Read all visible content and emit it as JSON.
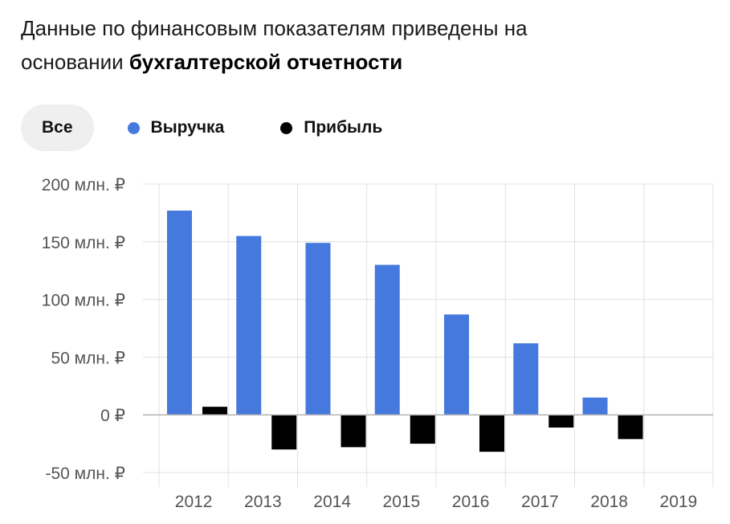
{
  "header": {
    "line1": "Данные по финансовым показателям приведены на",
    "line2_prefix": "основании ",
    "line2_bold": "бухгалтерской отчетности"
  },
  "filters": {
    "all_label": "Все"
  },
  "colors": {
    "revenue": "#4579de",
    "profit": "#000000",
    "grid": "#e0e0e0",
    "zero_line": "#b5b5b5"
  },
  "chart_data": {
    "type": "bar",
    "categories": [
      "2012",
      "2013",
      "2014",
      "2015",
      "2016",
      "2017",
      "2018",
      "2019"
    ],
    "series": [
      {
        "name": "Выручка",
        "values": [
          177,
          155,
          149,
          130,
          87,
          62,
          15,
          0
        ]
      },
      {
        "name": "Прибыль",
        "values": [
          7,
          -30,
          -28,
          -25,
          -32,
          -11,
          -21,
          0
        ]
      }
    ],
    "ylim": [
      -50,
      200
    ],
    "yticks": [
      200,
      150,
      100,
      50,
      0,
      -50
    ],
    "ytick_labels": [
      "200 млн. ₽",
      "150 млн. ₽",
      "100 млн. ₽",
      "50 млн. ₽",
      "0 ₽",
      "-50 млн. ₽"
    ],
    "unit": "млн. ₽",
    "grid": true,
    "legend_position": "top-left",
    "title": "",
    "xlabel": "",
    "ylabel": ""
  }
}
